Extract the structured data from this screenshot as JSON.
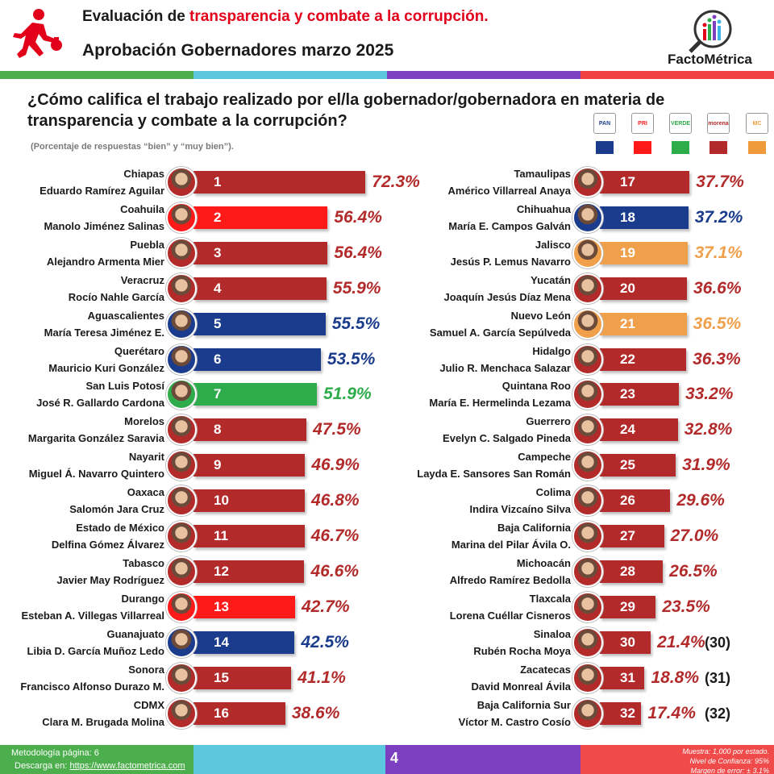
{
  "header": {
    "title_prefix": "Evaluación de ",
    "title_highlight": "transparencia y combate a la corrupción.",
    "subtitle": "Aprobación Gobernadores marzo 2025",
    "brand": "FactoMétrica"
  },
  "question": {
    "text": "¿Cómo califica el trabajo realizado por el/la gobernador/gobernadora en materia de transparencia y combate a la corrupción?",
    "note": "(Porcentaje de respuestas “bien” y “muy bien”)."
  },
  "parties": [
    {
      "name": "PAN",
      "color": "#1b3c8c",
      "text": "PAN"
    },
    {
      "name": "PRI",
      "color": "#ff1a1a",
      "text": "PRI"
    },
    {
      "name": "PVEM",
      "color": "#2eab4a",
      "text": "VERDE"
    },
    {
      "name": "Morena",
      "color": "#b22a2a",
      "text": "morena"
    },
    {
      "name": "MC",
      "color": "#f09b3b",
      "text": "MC"
    }
  ],
  "colors": {
    "morena": "#b22a2a",
    "pri": "#ff1a1a",
    "pan": "#1b3c8c",
    "pvem": "#2eab4a",
    "mc": "#f0a04b",
    "pct_morena": "#b22a2a",
    "pct_pan": "#1b3c8c",
    "pct_pvem": "#2eab4a",
    "pct_mc": "#f0a04b"
  },
  "chart_data": {
    "type": "bar",
    "orientation": "horizontal",
    "title": "¿Cómo califica el trabajo realizado por el/la gobernador/gobernadora en materia de transparencia y combate a la corrupción?",
    "xlabel": "",
    "ylabel": "",
    "xlim": [
      0,
      100
    ],
    "grid": false,
    "legend": "top-right",
    "rows": [
      {
        "rank": 1,
        "state": "Chiapas",
        "name": "Eduardo Ramírez Aguilar",
        "value": 72.3,
        "label": "72.3%",
        "party": "morena"
      },
      {
        "rank": 2,
        "state": "Coahuila",
        "name": "Manolo Jiménez Salinas",
        "value": 56.4,
        "label": "56.4%",
        "party": "pri"
      },
      {
        "rank": 3,
        "state": "Puebla",
        "name": "Alejandro Armenta Mier",
        "value": 56.4,
        "label": "56.4%",
        "party": "morena"
      },
      {
        "rank": 4,
        "state": "Veracruz",
        "name": "Rocío Nahle García",
        "value": 55.9,
        "label": "55.9%",
        "party": "morena"
      },
      {
        "rank": 5,
        "state": "Aguascalientes",
        "name": "María Teresa Jiménez E.",
        "value": 55.5,
        "label": "55.5%",
        "party": "pan"
      },
      {
        "rank": 6,
        "state": "Querétaro",
        "name": "Mauricio Kuri González",
        "value": 53.5,
        "label": "53.5%",
        "party": "pan"
      },
      {
        "rank": 7,
        "state": "San Luis Potosí",
        "name": "José R. Gallardo Cardona",
        "value": 51.9,
        "label": "51.9%",
        "party": "pvem"
      },
      {
        "rank": 8,
        "state": "Morelos",
        "name": "Margarita González Saravia",
        "value": 47.5,
        "label": "47.5%",
        "party": "morena"
      },
      {
        "rank": 9,
        "state": "Nayarit",
        "name": "Miguel Á. Navarro Quintero",
        "value": 46.9,
        "label": "46.9%",
        "party": "morena"
      },
      {
        "rank": 10,
        "state": "Oaxaca",
        "name": "Salomón Jara Cruz",
        "value": 46.8,
        "label": "46.8%",
        "party": "morena"
      },
      {
        "rank": 11,
        "state": "Estado de México",
        "name": "Delfina Gómez Álvarez",
        "value": 46.7,
        "label": "46.7%",
        "party": "morena"
      },
      {
        "rank": 12,
        "state": "Tabasco",
        "name": "Javier May Rodríguez",
        "value": 46.6,
        "label": "46.6%",
        "party": "morena"
      },
      {
        "rank": 13,
        "state": "Durango",
        "name": "Esteban A. Villegas Villarreal",
        "value": 42.7,
        "label": "42.7%",
        "party": "pri"
      },
      {
        "rank": 14,
        "state": "Guanajuato",
        "name": "Libia D. García Muñoz Ledo",
        "value": 42.5,
        "label": "42.5%",
        "party": "pan"
      },
      {
        "rank": 15,
        "state": "Sonora",
        "name": "Francisco Alfonso Durazo M.",
        "value": 41.1,
        "label": "41.1%",
        "party": "morena"
      },
      {
        "rank": 16,
        "state": "CDMX",
        "name": "Clara M. Brugada Molina",
        "value": 38.6,
        "label": "38.6%",
        "party": "morena"
      },
      {
        "rank": 17,
        "state": "Tamaulipas",
        "name": "Américo Villarreal Anaya",
        "value": 37.7,
        "label": "37.7%",
        "party": "morena"
      },
      {
        "rank": 18,
        "state": "Chihuahua",
        "name": "María E. Campos Galván",
        "value": 37.2,
        "label": "37.2%",
        "party": "pan"
      },
      {
        "rank": 19,
        "state": "Jalisco",
        "name": "Jesús P. Lemus Navarro",
        "value": 37.1,
        "label": "37.1%",
        "party": "mc"
      },
      {
        "rank": 20,
        "state": "Yucatán",
        "name": "Joaquín Jesús Díaz Mena",
        "value": 36.6,
        "label": "36.6%",
        "party": "morena"
      },
      {
        "rank": 21,
        "state": "Nuevo León",
        "name": "Samuel A. García Sepúlveda",
        "value": 36.5,
        "label": "36.5%",
        "party": "mc"
      },
      {
        "rank": 22,
        "state": "Hidalgo",
        "name": "Julio R. Menchaca Salazar",
        "value": 36.3,
        "label": "36.3%",
        "party": "morena"
      },
      {
        "rank": 23,
        "state": "Quintana Roo",
        "name": "María E. Hermelinda Lezama",
        "value": 33.2,
        "label": "33.2%",
        "party": "morena"
      },
      {
        "rank": 24,
        "state": "Guerrero",
        "name": "Evelyn C. Salgado Pineda",
        "value": 32.8,
        "label": "32.8%",
        "party": "morena"
      },
      {
        "rank": 25,
        "state": "Campeche",
        "name": "Layda E. Sansores San Román",
        "value": 31.9,
        "label": "31.9%",
        "party": "morena"
      },
      {
        "rank": 26,
        "state": "Colima",
        "name": "Indira Vizcaíno Silva",
        "value": 29.6,
        "label": "29.6%",
        "party": "morena"
      },
      {
        "rank": 27,
        "state": "Baja California",
        "name": "Marina del Pilar Ávila O.",
        "value": 27.0,
        "label": "27.0%",
        "party": "morena"
      },
      {
        "rank": 28,
        "state": "Michoacán",
        "name": "Alfredo Ramírez Bedolla",
        "value": 26.5,
        "label": "26.5%",
        "party": "morena"
      },
      {
        "rank": 29,
        "state": "Tlaxcala",
        "name": "Lorena Cuéllar Cisneros",
        "value": 23.5,
        "label": "23.5%",
        "party": "morena"
      },
      {
        "rank": 30,
        "state": "Sinaloa",
        "name": "Rubén Rocha Moya",
        "value": 21.4,
        "label": "21.4%",
        "party": "morena",
        "rank_outside": "(30)"
      },
      {
        "rank": 31,
        "state": "Zacatecas",
        "name": "David Monreal Ávila",
        "value": 18.8,
        "label": "18.8%",
        "party": "morena",
        "rank_outside": "(31)"
      },
      {
        "rank": 32,
        "state": "Baja California Sur",
        "name": "Víctor M. Castro Cosío",
        "value": 17.4,
        "label": "17.4%",
        "party": "morena",
        "rank_outside": "(32)"
      }
    ]
  },
  "footer": {
    "methodology": "Metodología página: 6",
    "download_prefix": "Descarga en: ",
    "download_link": "https://www.factometrica.com",
    "page_number": "4",
    "sample_line1": "Muestra:  1,000 por estado.",
    "sample_line2": "Nivel de Confianza: 95%",
    "sample_line3": "Margen de error: ± 3.1%"
  }
}
